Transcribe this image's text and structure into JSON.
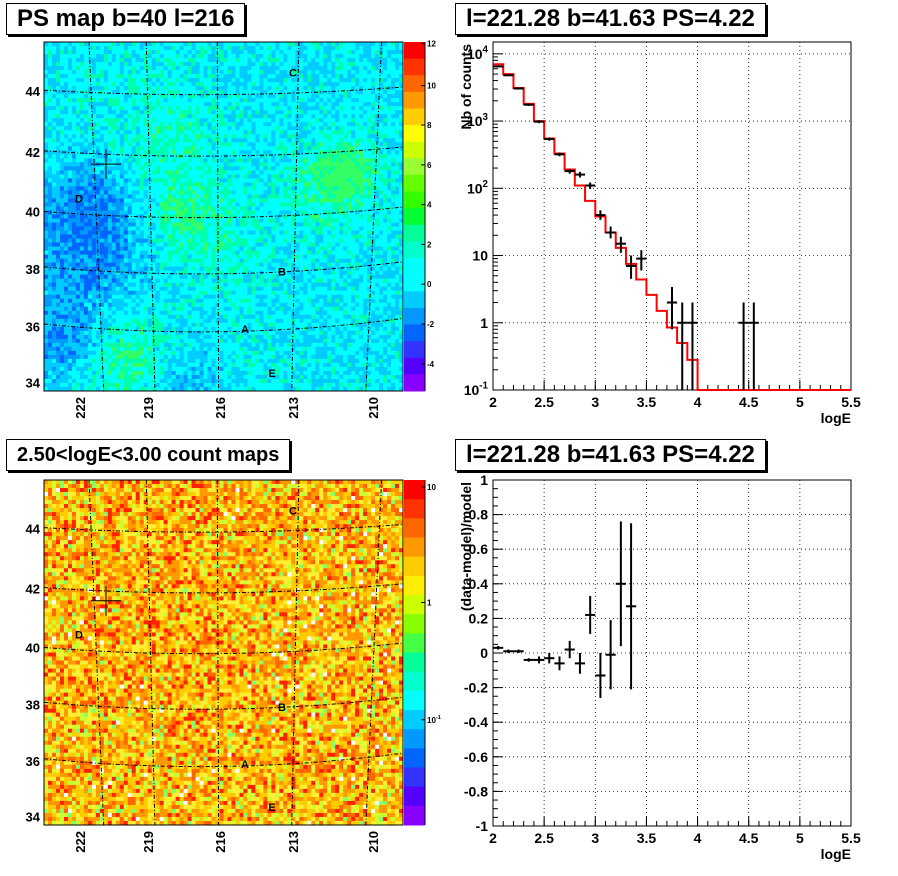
{
  "chart_data": [
    {
      "id": "ps_map",
      "type": "heatmap",
      "title": "PS map b=40 l=216",
      "x_tick_labels": [
        "222",
        "219",
        "216",
        "213",
        "210"
      ],
      "y_tick_labels": [
        "34",
        "36",
        "38",
        "40",
        "42",
        "44"
      ],
      "colorbar_ticks": [
        "12",
        "10",
        "8",
        "6",
        "4",
        "2",
        "0",
        "-2",
        "-4"
      ],
      "zlim": [
        -5,
        12
      ],
      "source_labels": [
        {
          "text": "C",
          "l": 213.0,
          "b": 44.3
        },
        {
          "text": "D",
          "l": 221.6,
          "b": 40.5
        },
        {
          "text": "B",
          "l": 213.6,
          "b": 37.9
        },
        {
          "text": "A",
          "l": 215.0,
          "b": 35.7
        },
        {
          "text": "E",
          "l": 213.4,
          "b": 34.2
        }
      ],
      "marker": {
        "l": 221.28,
        "b": 41.63
      }
    },
    {
      "id": "spectrum",
      "type": "line",
      "title": "l=221.28 b=41.63 PS=4.22",
      "xlabel": "logE",
      "ylabel": "Nb of counts",
      "log_y": true,
      "xlim": [
        2,
        5.5
      ],
      "ylim": [
        0.1,
        15000
      ],
      "x_ticks": [
        "2",
        "2.5",
        "3",
        "3.5",
        "4",
        "4.5",
        "5",
        "5.5"
      ],
      "y_ticks": [
        "10^-1",
        "1",
        "10",
        "10^2",
        "10^3",
        "10^4"
      ],
      "grid": true,
      "bin_width": 0.1,
      "model_bins": [
        [
          2.0,
          7000
        ],
        [
          2.1,
          5000
        ],
        [
          2.2,
          3100
        ],
        [
          2.3,
          1800
        ],
        [
          2.4,
          1000
        ],
        [
          2.5,
          550
        ],
        [
          2.6,
          330
        ],
        [
          2.7,
          190
        ],
        [
          2.8,
          110
        ],
        [
          2.9,
          65
        ],
        [
          3.0,
          38
        ],
        [
          3.1,
          22
        ],
        [
          3.2,
          13
        ],
        [
          3.3,
          7.5
        ],
        [
          3.4,
          4.4
        ],
        [
          3.5,
          2.6
        ],
        [
          3.6,
          1.5
        ],
        [
          3.7,
          0.85
        ],
        [
          3.8,
          0.5
        ],
        [
          3.9,
          0.28
        ],
        [
          4.0,
          0.1
        ],
        [
          4.5,
          0.1
        ],
        [
          5.0,
          0.1
        ],
        [
          5.5,
          0.1
        ]
      ],
      "data_points": [
        {
          "x": 2.05,
          "y": 6500,
          "lo": 6300,
          "hi": 6700
        },
        {
          "x": 2.15,
          "y": 4800,
          "lo": 4650,
          "hi": 4950
        },
        {
          "x": 2.25,
          "y": 3050,
          "lo": 2950,
          "hi": 3150
        },
        {
          "x": 2.35,
          "y": 1750,
          "lo": 1680,
          "hi": 1820
        },
        {
          "x": 2.45,
          "y": 980,
          "lo": 930,
          "hi": 1030
        },
        {
          "x": 2.55,
          "y": 540,
          "lo": 510,
          "hi": 570
        },
        {
          "x": 2.65,
          "y": 320,
          "lo": 300,
          "hi": 340
        },
        {
          "x": 2.75,
          "y": 180,
          "lo": 165,
          "hi": 195
        },
        {
          "x": 2.85,
          "y": 160,
          "lo": 145,
          "hi": 175
        },
        {
          "x": 2.95,
          "y": 110,
          "lo": 98,
          "hi": 122
        },
        {
          "x": 3.05,
          "y": 40,
          "lo": 34,
          "hi": 47
        },
        {
          "x": 3.15,
          "y": 22,
          "lo": 18,
          "hi": 27
        },
        {
          "x": 3.25,
          "y": 15,
          "lo": 11,
          "hi": 19
        },
        {
          "x": 3.35,
          "y": 7,
          "lo": 4.5,
          "hi": 10
        },
        {
          "x": 3.45,
          "y": 9,
          "lo": 6,
          "hi": 12
        },
        {
          "x": 3.75,
          "y": 2,
          "lo": 0.8,
          "hi": 3.4
        },
        {
          "x": 3.85,
          "y": 1,
          "lo": 0.1,
          "hi": 2.0
        },
        {
          "x": 3.95,
          "y": 1,
          "lo": 0.1,
          "hi": 2.0
        },
        {
          "x": 4.45,
          "y": 1,
          "lo": 0.1,
          "hi": 2.0
        },
        {
          "x": 4.55,
          "y": 1,
          "lo": 0.1,
          "hi": 2.0
        }
      ]
    },
    {
      "id": "count_map",
      "type": "heatmap",
      "title": "2.50<logE<3.00 count maps",
      "x_tick_labels": [
        "222",
        "219",
        "216",
        "213",
        "210"
      ],
      "y_tick_labels": [
        "34",
        "36",
        "38",
        "40",
        "42",
        "44"
      ],
      "colorbar_ticks": [
        "10",
        "1",
        "10^-1"
      ],
      "log_z": true,
      "source_labels": [
        {
          "text": "C",
          "l": 213.0,
          "b": 44.3
        },
        {
          "text": "D",
          "l": 221.6,
          "b": 40.5
        },
        {
          "text": "B",
          "l": 213.6,
          "b": 37.9
        },
        {
          "text": "A",
          "l": 215.0,
          "b": 35.7
        },
        {
          "text": "E",
          "l": 213.4,
          "b": 34.2
        }
      ],
      "marker": {
        "l": 221.28,
        "b": 41.63
      }
    },
    {
      "id": "residuals",
      "type": "scatter",
      "title": "l=221.28 b=41.63 PS=4.22",
      "xlabel": "logE",
      "ylabel": "(data-model)/model",
      "xlim": [
        2,
        5.5
      ],
      "ylim": [
        -1,
        1
      ],
      "x_ticks": [
        "2",
        "2.5",
        "3",
        "3.5",
        "4",
        "4.5",
        "5",
        "5.5"
      ],
      "y_ticks": [
        "-1",
        "-0.8",
        "-0.6",
        "-0.4",
        "-0.2",
        "0",
        "0.2",
        "0.4",
        "0.6",
        "0.8",
        "1"
      ],
      "grid": true,
      "data_points": [
        {
          "x": 2.05,
          "y": 0.03,
          "err": 0.01
        },
        {
          "x": 2.15,
          "y": 0.01,
          "err": 0.01
        },
        {
          "x": 2.25,
          "y": 0.01,
          "err": 0.01
        },
        {
          "x": 2.35,
          "y": -0.04,
          "err": 0.01
        },
        {
          "x": 2.45,
          "y": -0.04,
          "err": 0.02
        },
        {
          "x": 2.55,
          "y": -0.03,
          "err": 0.03
        },
        {
          "x": 2.65,
          "y": -0.06,
          "err": 0.04
        },
        {
          "x": 2.75,
          "y": 0.02,
          "err": 0.05
        },
        {
          "x": 2.85,
          "y": -0.06,
          "err": 0.06
        },
        {
          "x": 2.95,
          "y": 0.22,
          "err": 0.11
        },
        {
          "x": 3.05,
          "y": -0.13,
          "err": 0.13
        },
        {
          "x": 3.15,
          "y": -0.01,
          "err": 0.2
        },
        {
          "x": 3.25,
          "y": 0.4,
          "err": 0.36
        },
        {
          "x": 3.35,
          "y": 0.27,
          "err": 0.48
        }
      ]
    }
  ]
}
